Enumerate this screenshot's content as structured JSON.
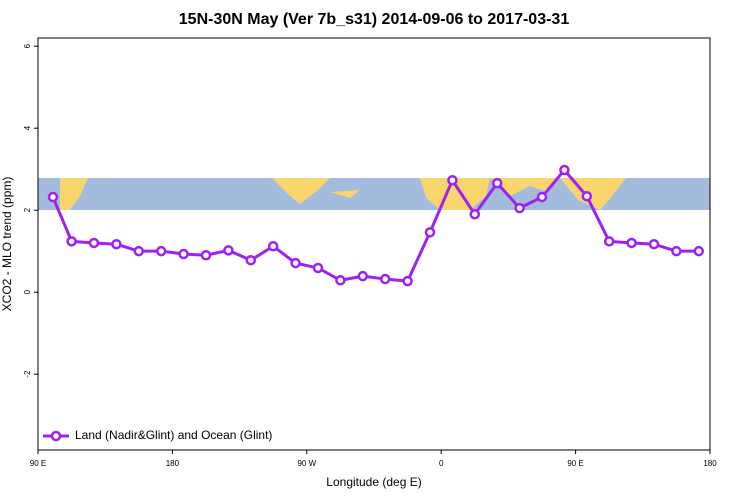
{
  "chart_data": {
    "type": "line",
    "title": "15N-30N May (Ver 7b_s31)   2014-09-06 to 2017-03-31",
    "x_label": "Longitude (deg E)",
    "y_label": "XCO2 - MLO trend (ppm)",
    "x": [
      100,
      112.5,
      127.5,
      142.5,
      157.5,
      172.5,
      187.5,
      202.5,
      217.5,
      232.5,
      247.5,
      262.5,
      277.5,
      292.5,
      307.5,
      322.5,
      337.5,
      352.5,
      367.5,
      382.5,
      397.5,
      412.5,
      427.5,
      442.5,
      457.5,
      472.5,
      487.5,
      502.5,
      517.5,
      532.5
    ],
    "series": [
      {
        "name": "Land (Nadir&Glint) and Ocean (Glint)",
        "color": "#a020f0",
        "values": [
          2.32,
          1.24,
          1.2,
          1.17,
          1.0,
          1.0,
          0.93,
          0.9,
          1.02,
          0.78,
          1.12,
          0.71,
          0.59,
          0.29,
          0.39,
          0.32,
          0.27,
          1.46,
          2.73,
          1.9,
          2.66,
          2.05,
          2.32,
          2.98,
          2.34,
          1.24,
          1.2,
          1.17,
          1.0,
          1.0
        ]
      }
    ],
    "xlim": [
      90,
      540
    ],
    "xticks": [
      {
        "value": 90,
        "label": "90 E"
      },
      180,
      {
        "value": 270,
        "label": "90 W"
      },
      {
        "value": 360,
        "label": "0"
      },
      {
        "value": 450,
        "label": "90 E"
      },
      {
        "value": 540,
        "label": "180"
      }
    ],
    "ylim": [
      -3.85,
      6.2
    ],
    "yticks": [
      -2,
      0,
      2,
      4,
      6
    ],
    "legend": "lower left"
  }
}
